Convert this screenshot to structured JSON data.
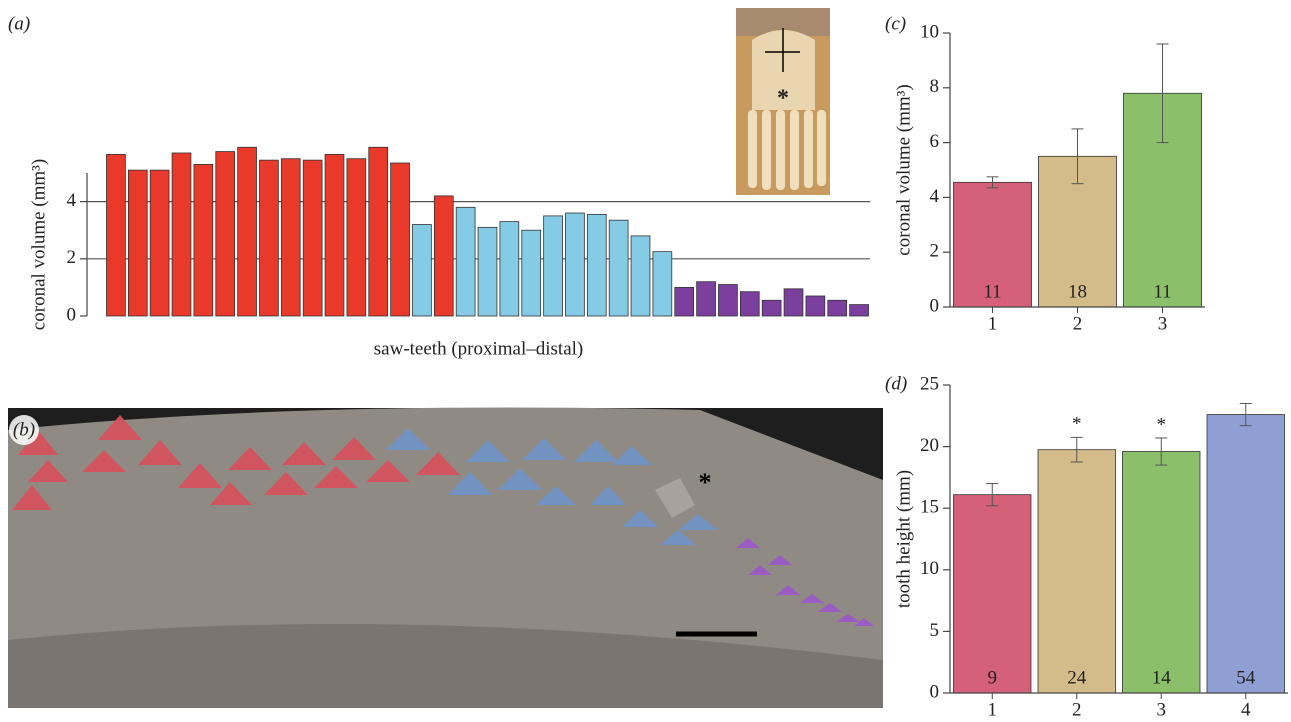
{
  "chart_data": [
    {
      "type": "bar",
      "panel_label": "(a)",
      "ylabel": "coronal volume (mm³)",
      "xlabel": "saw-teeth (proximal–distal)",
      "values": [
        5.65,
        5.1,
        5.1,
        5.7,
        5.3,
        5.75,
        5.9,
        5.45,
        5.5,
        5.45,
        5.65,
        5.5,
        5.9,
        5.35,
        3.2,
        4.2,
        3.8,
        3.1,
        3.3,
        3.0,
        3.5,
        3.6,
        3.55,
        3.35,
        2.8,
        2.25,
        1.0,
        1.2,
        1.1,
        0.85,
        0.55,
        0.95,
        0.7,
        0.55,
        0.4
      ],
      "colors": [
        "#e8392b",
        "#e8392b",
        "#e8392b",
        "#e8392b",
        "#e8392b",
        "#e8392b",
        "#e8392b",
        "#e8392b",
        "#e8392b",
        "#e8392b",
        "#e8392b",
        "#e8392b",
        "#e8392b",
        "#e8392b",
        "#86cbe6",
        "#e8392b",
        "#86cbe6",
        "#86cbe6",
        "#86cbe6",
        "#86cbe6",
        "#86cbe6",
        "#86cbe6",
        "#86cbe6",
        "#86cbe6",
        "#86cbe6",
        "#86cbe6",
        "#7b3f9e",
        "#7b3f9e",
        "#7b3f9e",
        "#7b3f9e",
        "#7b3f9e",
        "#7b3f9e",
        "#7b3f9e",
        "#7b3f9e",
        "#7b3f9e"
      ],
      "ylim": [
        0,
        5
      ],
      "yticks": [
        0,
        2,
        4
      ],
      "grid": true,
      "inset_marker": "*"
    },
    {
      "type": "bar",
      "panel_label": "(c)",
      "ylabel": "coronal volume (mm³)",
      "categories": [
        "1",
        "2",
        "3"
      ],
      "values": [
        4.55,
        5.5,
        7.8
      ],
      "errors": [
        0.2,
        1.0,
        1.8
      ],
      "bar_labels": [
        "11",
        "18",
        "11"
      ],
      "colors": [
        "#d4607a",
        "#d4bb8a",
        "#8cbf6a"
      ],
      "ylim": [
        0,
        10
      ],
      "yticks": [
        0,
        2,
        4,
        6,
        8,
        10
      ],
      "grid": false
    },
    {
      "type": "bar",
      "panel_label": "(d)",
      "ylabel": "tooth height (mm)",
      "categories": [
        "1",
        "2",
        "3",
        "4"
      ],
      "values": [
        16.1,
        19.75,
        19.6,
        22.6
      ],
      "errors": [
        0.9,
        1.0,
        1.1,
        0.9
      ],
      "bar_labels": [
        "9",
        "24",
        "14",
        "54"
      ],
      "asterisks": [
        null,
        "*",
        "*",
        null
      ],
      "colors": [
        "#d4607a",
        "#d4bb8a",
        "#8cbf6a",
        "#8f9fd4"
      ],
      "ylim": [
        0,
        25
      ],
      "yticks": [
        0,
        5,
        10,
        15,
        20,
        25
      ],
      "grid": false
    }
  ],
  "panel_b": {
    "label": "(b)",
    "marker": "*"
  }
}
